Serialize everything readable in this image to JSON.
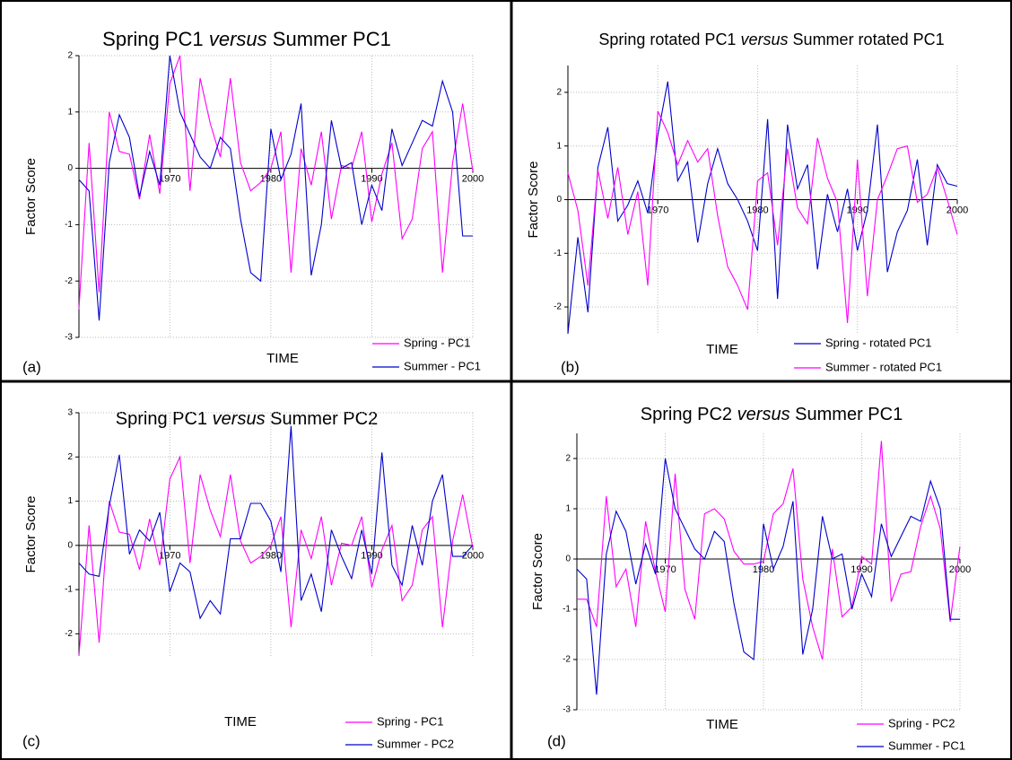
{
  "chart_data": [
    {
      "type": "line",
      "panel": "(a)",
      "title": [
        "Spring PC1",
        "versus",
        "Summer PC1"
      ],
      "ylabel": "Factor Score",
      "xlabel": "TIME",
      "x": [
        1961,
        1962,
        1963,
        1964,
        1965,
        1966,
        1967,
        1968,
        1969,
        1970,
        1971,
        1972,
        1973,
        1974,
        1975,
        1976,
        1977,
        1978,
        1979,
        1980,
        1981,
        1982,
        1983,
        1984,
        1985,
        1986,
        1987,
        1988,
        1989,
        1990,
        1991,
        1992,
        1993,
        1994,
        1995,
        1996,
        1997,
        1998,
        1999,
        2000
      ],
      "xlim": [
        1961,
        2000
      ],
      "xticks": [
        1970,
        1980,
        1990,
        2000
      ],
      "ylim": [
        -3,
        2
      ],
      "yticks": [
        -3,
        -2,
        -1,
        0,
        1,
        2
      ],
      "grid": true,
      "legend": "lower-right",
      "series": [
        {
          "name": "Spring - PC1",
          "color": "#ff00ff",
          "values": [
            -2.5,
            0.45,
            -2.2,
            1.0,
            0.3,
            0.25,
            -0.55,
            0.6,
            -0.45,
            1.5,
            2.0,
            -0.4,
            1.6,
            0.8,
            0.2,
            1.6,
            0.1,
            -0.4,
            -0.25,
            0.0,
            0.65,
            -1.85,
            0.35,
            -0.3,
            0.65,
            -0.9,
            0.05,
            0.0,
            0.65,
            -0.95,
            -0.1,
            0.45,
            -1.25,
            -0.9,
            0.35,
            0.65,
            -1.85,
            0.1,
            1.15,
            -0.05
          ]
        },
        {
          "name": "Summer - PC1",
          "color": "#0000cc",
          "values": [
            -0.2,
            -0.4,
            -2.7,
            0.1,
            0.95,
            0.55,
            -0.5,
            0.3,
            -0.3,
            2.0,
            1.0,
            0.6,
            0.2,
            0.0,
            0.55,
            0.35,
            -0.9,
            -1.85,
            -2.0,
            0.7,
            -0.2,
            0.25,
            1.15,
            -1.9,
            -1.0,
            0.85,
            0.0,
            0.1,
            -1.0,
            -0.3,
            -0.75,
            0.7,
            0.05,
            0.45,
            0.85,
            0.75,
            1.55,
            1.0,
            -1.2,
            -1.2
          ]
        }
      ]
    },
    {
      "type": "line",
      "panel": "(b)",
      "title": [
        "Spring rotated PC1",
        "versus",
        "Summer rotated PC1"
      ],
      "ylabel": "Factor Score",
      "xlabel": "TIME",
      "x": [
        1961,
        1962,
        1963,
        1964,
        1965,
        1966,
        1967,
        1968,
        1969,
        1970,
        1971,
        1972,
        1973,
        1974,
        1975,
        1976,
        1977,
        1978,
        1979,
        1980,
        1981,
        1982,
        1983,
        1984,
        1985,
        1986,
        1987,
        1988,
        1989,
        1990,
        1991,
        1992,
        1993,
        1994,
        1995,
        1996,
        1997,
        1998,
        1999,
        2000
      ],
      "xlim": [
        1961,
        2000
      ],
      "xticks": [
        1970,
        1980,
        1990,
        2000
      ],
      "ylim": [
        -2.5,
        2.5
      ],
      "yticks": [
        -2,
        -1,
        0,
        1,
        2
      ],
      "grid": true,
      "legend": "lower-right",
      "series": [
        {
          "name": "Spring - rotated PC1",
          "color": "#0000cc",
          "values": [
            -2.5,
            -0.7,
            -2.1,
            0.6,
            1.35,
            -0.4,
            -0.1,
            0.35,
            -0.25,
            1.2,
            2.2,
            0.35,
            0.7,
            -0.8,
            0.3,
            0.95,
            0.3,
            0.0,
            -0.4,
            -0.95,
            1.5,
            -1.85,
            1.4,
            0.2,
            0.65,
            -1.3,
            0.1,
            -0.6,
            0.2,
            -0.95,
            -0.2,
            1.4,
            -1.35,
            -0.6,
            -0.2,
            0.75,
            -0.85,
            0.65,
            0.3,
            0.25
          ]
        },
        {
          "name": "Summer - rotated PC1",
          "color": "#ff00ff",
          "values": [
            0.5,
            -0.2,
            -1.6,
            0.55,
            -0.35,
            0.6,
            -0.65,
            0.15,
            -1.6,
            1.65,
            1.25,
            0.65,
            1.1,
            0.7,
            0.95,
            -0.3,
            -1.25,
            -1.6,
            -2.05,
            0.35,
            0.5,
            -0.85,
            0.95,
            -0.15,
            -0.45,
            1.15,
            0.4,
            -0.05,
            -2.3,
            0.75,
            -1.8,
            0.0,
            0.45,
            0.95,
            1.0,
            -0.05,
            0.1,
            0.6,
            0.0,
            -0.65
          ]
        }
      ]
    },
    {
      "type": "line",
      "panel": "(c)",
      "title": [
        "Spring PC1",
        "versus",
        "Summer PC2"
      ],
      "ylabel": "Factor Score",
      "xlabel": "TIME",
      "x": [
        1961,
        1962,
        1963,
        1964,
        1965,
        1966,
        1967,
        1968,
        1969,
        1970,
        1971,
        1972,
        1973,
        1974,
        1975,
        1976,
        1977,
        1978,
        1979,
        1980,
        1981,
        1982,
        1983,
        1984,
        1985,
        1986,
        1987,
        1988,
        1989,
        1990,
        1991,
        1992,
        1993,
        1994,
        1995,
        1996,
        1997,
        1998,
        1999,
        2000
      ],
      "xlim": [
        1961,
        2000
      ],
      "xticks": [
        1970,
        1980,
        1990,
        2000
      ],
      "ylim": [
        -2.5,
        3
      ],
      "yticks": [
        -2,
        -1,
        0,
        1,
        2,
        3
      ],
      "grid": true,
      "legend": "lower-right",
      "series": [
        {
          "name": "Spring - PC1",
          "color": "#ff00ff",
          "values": [
            -2.5,
            0.45,
            -2.2,
            1.0,
            0.3,
            0.25,
            -0.55,
            0.6,
            -0.45,
            1.5,
            2.0,
            -0.4,
            1.6,
            0.8,
            0.2,
            1.6,
            0.1,
            -0.4,
            -0.25,
            0.0,
            0.65,
            -1.85,
            0.35,
            -0.3,
            0.65,
            -0.9,
            0.05,
            0.0,
            0.65,
            -0.95,
            -0.1,
            0.45,
            -1.25,
            -0.9,
            0.35,
            0.65,
            -1.85,
            0.1,
            1.15,
            -0.05
          ]
        },
        {
          "name": "Summer - PC2",
          "color": "#0000cc",
          "values": [
            -0.4,
            -0.65,
            -0.7,
            0.9,
            2.05,
            -0.2,
            0.35,
            0.1,
            0.75,
            -1.05,
            -0.4,
            -0.6,
            -1.65,
            -1.25,
            -1.55,
            0.15,
            0.15,
            0.95,
            0.95,
            0.55,
            -0.6,
            2.7,
            -1.25,
            -0.65,
            -1.5,
            0.35,
            -0.25,
            -0.75,
            0.35,
            -0.65,
            2.1,
            -0.45,
            -0.9,
            0.45,
            -0.45,
            1.0,
            1.6,
            -0.25,
            -0.25,
            0.0
          ]
        }
      ]
    },
    {
      "type": "line",
      "panel": "(d)",
      "title": [
        "Spring PC2",
        "versus",
        "Summer PC1"
      ],
      "ylabel": "Factor Score",
      "xlabel": "TIME",
      "x": [
        1961,
        1962,
        1963,
        1964,
        1965,
        1966,
        1967,
        1968,
        1969,
        1970,
        1971,
        1972,
        1973,
        1974,
        1975,
        1976,
        1977,
        1978,
        1979,
        1980,
        1981,
        1982,
        1983,
        1984,
        1985,
        1986,
        1987,
        1988,
        1989,
        1990,
        1991,
        1992,
        1993,
        1994,
        1995,
        1996,
        1997,
        1998,
        1999,
        2000
      ],
      "xlim": [
        1961,
        2000
      ],
      "xticks": [
        1970,
        1980,
        1990,
        2000
      ],
      "ylim": [
        -3,
        2.5
      ],
      "yticks": [
        -3,
        -2,
        -1,
        0,
        1,
        2
      ],
      "grid": true,
      "legend": "lower-right",
      "series": [
        {
          "name": "Spring - PC2",
          "color": "#ff00ff",
          "values": [
            -0.8,
            -0.8,
            -1.35,
            1.25,
            -0.55,
            -0.2,
            -1.35,
            0.75,
            -0.25,
            -1.05,
            1.7,
            -0.6,
            -1.2,
            0.9,
            1.0,
            0.8,
            0.15,
            -0.1,
            -0.1,
            -0.05,
            0.9,
            1.1,
            1.8,
            -0.4,
            -1.35,
            -2.0,
            0.2,
            -1.15,
            -0.95,
            0.05,
            -0.1,
            2.35,
            -0.85,
            -0.3,
            -0.25,
            0.65,
            1.25,
            0.6,
            -1.25,
            0.25
          ]
        },
        {
          "name": "Summer - PC1",
          "color": "#0000cc",
          "values": [
            -0.2,
            -0.4,
            -2.7,
            0.1,
            0.95,
            0.55,
            -0.5,
            0.3,
            -0.3,
            2.0,
            1.0,
            0.6,
            0.2,
            0.0,
            0.55,
            0.35,
            -0.9,
            -1.85,
            -2.0,
            0.7,
            -0.2,
            0.25,
            1.15,
            -1.9,
            -1.0,
            0.85,
            0.0,
            0.1,
            -1.0,
            -0.3,
            -0.75,
            0.7,
            0.05,
            0.45,
            0.85,
            0.75,
            1.55,
            1.0,
            -1.2,
            -1.2
          ]
        }
      ]
    }
  ]
}
